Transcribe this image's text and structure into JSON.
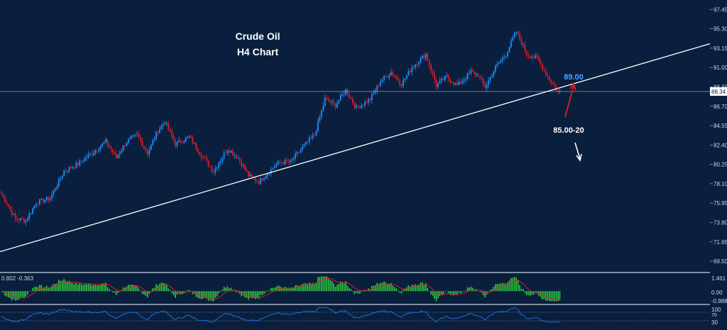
{
  "chart_data": {
    "type": "candlestick",
    "title": "Crude Oil",
    "subtitle": "H4 Chart",
    "y_ticks": [
      "97.45",
      "95.30",
      "93.15",
      "91.00",
      "88.85",
      "86.70",
      "84.55",
      "82.40",
      "80.25",
      "78.10",
      "75.95",
      "73.80",
      "71.65",
      "69.50"
    ],
    "y_range": [
      68.4,
      98.5
    ],
    "last_price": "88.34",
    "bull_color": "#1e90ff",
    "bear_color": "#e01c24",
    "anchors": [
      [
        0,
        77.0
      ],
      [
        8,
        74.2
      ],
      [
        14,
        74.0
      ],
      [
        20,
        76.0
      ],
      [
        28,
        76.5
      ],
      [
        36,
        79.5
      ],
      [
        44,
        80.3
      ],
      [
        52,
        81.5
      ],
      [
        60,
        82.8
      ],
      [
        66,
        81.0
      ],
      [
        72,
        82.8
      ],
      [
        78,
        83.5
      ],
      [
        84,
        81.5
      ],
      [
        90,
        84.0
      ],
      [
        94,
        85.0
      ],
      [
        100,
        82.5
      ],
      [
        108,
        83.3
      ],
      [
        116,
        81.0
      ],
      [
        122,
        79.5
      ],
      [
        130,
        82.0
      ],
      [
        136,
        81.0
      ],
      [
        142,
        79.0
      ],
      [
        148,
        78.3
      ],
      [
        154,
        79.5
      ],
      [
        160,
        80.5
      ],
      [
        166,
        80.5
      ],
      [
        174,
        82.3
      ],
      [
        180,
        83.5
      ],
      [
        186,
        87.5
      ],
      [
        192,
        86.8
      ],
      [
        198,
        88.5
      ],
      [
        204,
        86.5
      ],
      [
        212,
        87.5
      ],
      [
        218,
        89.5
      ],
      [
        224,
        90.5
      ],
      [
        230,
        89.2
      ],
      [
        236,
        91.0
      ],
      [
        244,
        92.5
      ],
      [
        250,
        89.0
      ],
      [
        256,
        90.0
      ],
      [
        262,
        89.0
      ],
      [
        270,
        90.5
      ],
      [
        274,
        90.2
      ],
      [
        278,
        88.8
      ],
      [
        284,
        91.0
      ],
      [
        290,
        92.5
      ],
      [
        296,
        95.0
      ],
      [
        302,
        92.5
      ],
      [
        308,
        92.0
      ],
      [
        314,
        90.0
      ],
      [
        320,
        88.3
      ]
    ],
    "trendline": {
      "start": [
        0,
        70.6
      ],
      "end": [
        320,
        88.7
      ]
    },
    "price_labels": [
      {
        "text": "89.00",
        "color": "#4fa3ff"
      },
      {
        "text": "85.00-20",
        "color": "#ffffff"
      }
    ],
    "indicator1": {
      "label": "0.802 -0.363",
      "y_ticks": [
        "1.461",
        "0.00",
        "-0.988"
      ],
      "range": [
        -1.3,
        1.8
      ],
      "histogram_color": "#2ecc40",
      "signal_color": "#e01c24"
    },
    "indicator2": {
      "y_ticks": [
        "100",
        "70",
        "30"
      ],
      "range": [
        0,
        100
      ],
      "line_color": "#1e6fd9",
      "level_color": "#8a96a8"
    }
  }
}
